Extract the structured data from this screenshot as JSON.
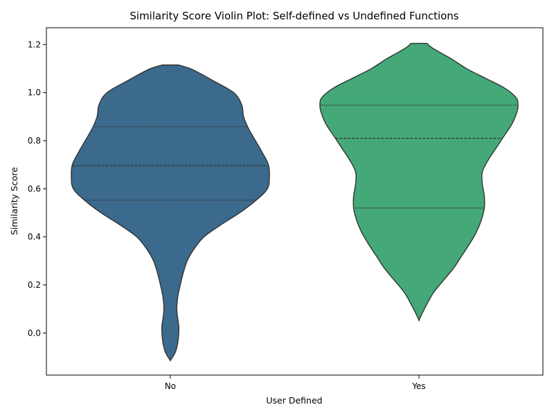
{
  "chart_data": {
    "type": "violin",
    "title": "Similarity Score Violin Plot: Self-defined vs Undefined Functions",
    "xlabel": "User Defined",
    "ylabel": "Similarity Score",
    "categories": [
      "No",
      "Yes"
    ],
    "ylim": [
      -0.175,
      1.27
    ],
    "yticks": [
      0.0,
      0.2,
      0.4,
      0.6,
      0.8,
      1.0,
      1.2
    ],
    "ytick_labels": [
      "0.0",
      "0.2",
      "0.4",
      "0.6",
      "0.8",
      "1.0",
      "1.2"
    ],
    "grid": false,
    "inner": "quartile",
    "colors": {
      "No": "#3b6a8c",
      "Yes": "#44a878"
    },
    "series": [
      {
        "category": "No",
        "range": [
          -0.115,
          1.115
        ],
        "quartiles": [
          0.553,
          0.696,
          0.858
        ],
        "density_profile": [
          [
            -0.115,
            0.0
          ],
          [
            -0.08,
            0.05
          ],
          [
            -0.04,
            0.075
          ],
          [
            0.0,
            0.085
          ],
          [
            0.03,
            0.085
          ],
          [
            0.06,
            0.075
          ],
          [
            0.1,
            0.065
          ],
          [
            0.15,
            0.075
          ],
          [
            0.2,
            0.1
          ],
          [
            0.25,
            0.13
          ],
          [
            0.3,
            0.17
          ],
          [
            0.35,
            0.24
          ],
          [
            0.4,
            0.34
          ],
          [
            0.45,
            0.51
          ],
          [
            0.5,
            0.7
          ],
          [
            0.55,
            0.86
          ],
          [
            0.6,
            0.98
          ],
          [
            0.65,
            1.0
          ],
          [
            0.7,
            0.99
          ],
          [
            0.75,
            0.93
          ],
          [
            0.8,
            0.86
          ],
          [
            0.85,
            0.79
          ],
          [
            0.9,
            0.74
          ],
          [
            0.95,
            0.72
          ],
          [
            1.0,
            0.64
          ],
          [
            1.05,
            0.43
          ],
          [
            1.08,
            0.3
          ],
          [
            1.1,
            0.2
          ],
          [
            1.115,
            0.085
          ]
        ]
      },
      {
        "category": "Yes",
        "range": [
          0.052,
          1.205
        ],
        "quartiles": [
          0.52,
          0.81,
          0.948
        ],
        "density_profile": [
          [
            0.052,
            0.0
          ],
          [
            0.08,
            0.03
          ],
          [
            0.12,
            0.08
          ],
          [
            0.17,
            0.15
          ],
          [
            0.22,
            0.25
          ],
          [
            0.27,
            0.35
          ],
          [
            0.32,
            0.43
          ],
          [
            0.37,
            0.51
          ],
          [
            0.42,
            0.58
          ],
          [
            0.47,
            0.63
          ],
          [
            0.52,
            0.66
          ],
          [
            0.57,
            0.66
          ],
          [
            0.62,
            0.64
          ],
          [
            0.67,
            0.64
          ],
          [
            0.72,
            0.7
          ],
          [
            0.77,
            0.78
          ],
          [
            0.82,
            0.86
          ],
          [
            0.87,
            0.94
          ],
          [
            0.92,
            0.99
          ],
          [
            0.95,
            1.0
          ],
          [
            0.98,
            0.98
          ],
          [
            1.02,
            0.86
          ],
          [
            1.06,
            0.67
          ],
          [
            1.1,
            0.48
          ],
          [
            1.14,
            0.33
          ],
          [
            1.17,
            0.2
          ],
          [
            1.19,
            0.12
          ],
          [
            1.205,
            0.08
          ]
        ]
      }
    ]
  }
}
